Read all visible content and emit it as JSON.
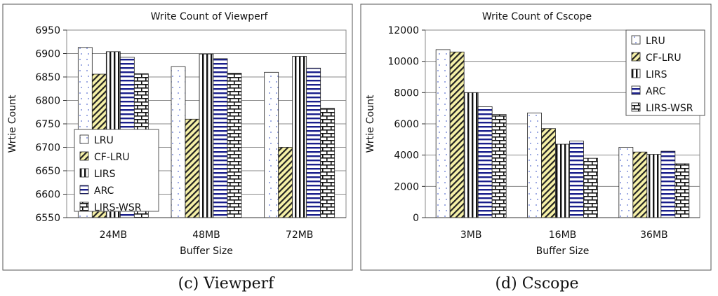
{
  "charts": [
    {
      "caption": "(c) Viewperf",
      "chart_data": {
        "type": "bar",
        "title": "Write Count of Viewperf",
        "xlabel": "Buffer Size",
        "ylabel": "Wrtie Count",
        "categories": [
          "24MB",
          "48MB",
          "72MB"
        ],
        "ylim": [
          6550,
          6950
        ],
        "yticks": [
          "6550",
          "6600",
          "6650",
          "6700",
          "6750",
          "6800",
          "6850",
          "6900",
          "6950"
        ],
        "grid": true,
        "legend_position": "bottom-left",
        "series": [
          {
            "name": "LRU",
            "values": [
              6913,
              6872,
              6860
            ]
          },
          {
            "name": "CF-LRU",
            "values": [
              6856,
              6760,
              6700
            ]
          },
          {
            "name": "LIRS",
            "values": [
              6904,
              6899,
              6894
            ]
          },
          {
            "name": "ARC",
            "values": [
              6892,
              6889,
              6869
            ]
          },
          {
            "name": "LIRS-WSR",
            "values": [
              6857,
              6858,
              6783
            ]
          }
        ]
      }
    },
    {
      "caption": "(d) Cscope",
      "chart_data": {
        "type": "bar",
        "title": "Write Count of Cscope",
        "xlabel": "Buffer Size",
        "ylabel": "Wrtie Count",
        "categories": [
          "3MB",
          "16MB",
          "36MB"
        ],
        "ylim": [
          0,
          12000
        ],
        "yticks": [
          "0",
          "2000",
          "4000",
          "6000",
          "8000",
          "10000",
          "12000"
        ],
        "grid": true,
        "legend_position": "top-right",
        "series": [
          {
            "name": "LRU",
            "values": [
              10750,
              6700,
              4500
            ]
          },
          {
            "name": "CF-LRU",
            "values": [
              10600,
              5700,
              4200
            ]
          },
          {
            "name": "LIRS",
            "values": [
              8000,
              4700,
              4050
            ]
          },
          {
            "name": "ARC",
            "values": [
              7100,
              4900,
              4250
            ]
          },
          {
            "name": "LIRS-WSR",
            "values": [
              6600,
              3800,
              3450
            ]
          }
        ]
      }
    }
  ]
}
